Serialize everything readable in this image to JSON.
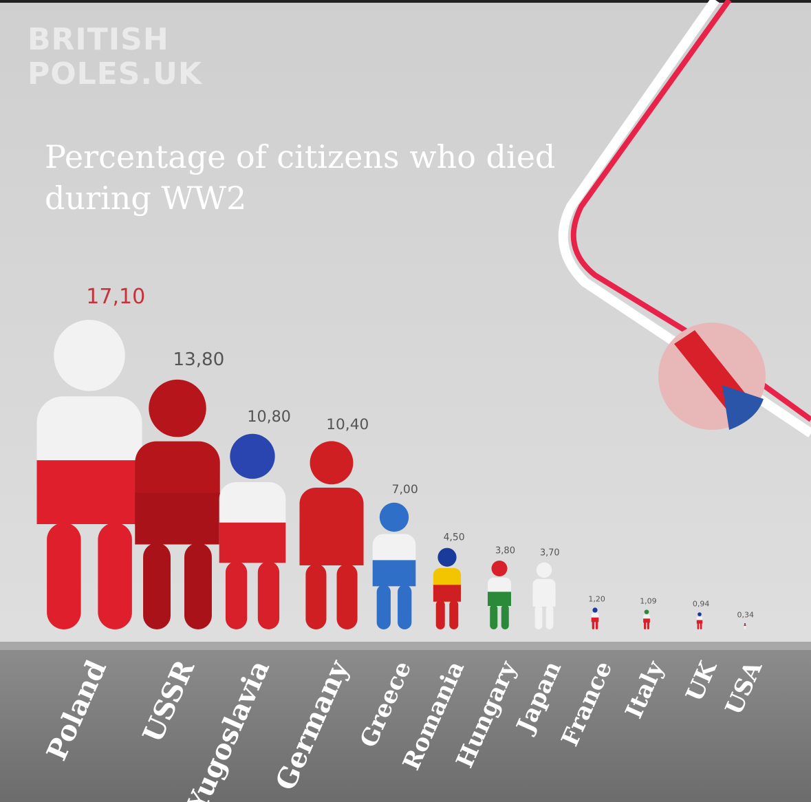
{
  "chart_data": {
    "type": "pictogram",
    "title": "Percentage of citizens who died during WW2",
    "watermark": [
      "BRITISH",
      "POLES.UK"
    ],
    "categories": [
      "Poland",
      "USSR",
      "Yugoslavia",
      "Germany",
      "Greece",
      "Romania",
      "Hungary",
      "Japan",
      "France",
      "Italy",
      "UK",
      "USA"
    ],
    "values": [
      17.1,
      13.8,
      10.8,
      10.4,
      7.0,
      4.5,
      3.8,
      3.7,
      1.2,
      1.09,
      0.94,
      0.34
    ],
    "value_labels": [
      "17,10",
      "13,80",
      "10,80",
      "10,40",
      "7,00",
      "4,50",
      "3,80",
      "3,70",
      "1,20",
      "1,09",
      "0,94",
      "0,34"
    ],
    "colors": [
      [
        "#f2f2f2",
        "#f2f2f2",
        "#e01f2d"
      ],
      [
        "#b5151b",
        "#b5151b",
        "#a81218"
      ],
      [
        "#2a45b0",
        "#f2f2f2",
        "#d8202a"
      ],
      [
        "#d01f22",
        "#d01f22",
        "#d01f22"
      ],
      [
        "#2f6fc8",
        "#f2f2f2",
        "#2f6fc8"
      ],
      [
        "#1a3a9c",
        "#f2c500",
        "#d01f22"
      ],
      [
        "#d8202a",
        "#f2f2f2",
        "#2a8a3a"
      ],
      [
        "#f2f2f2",
        "#f2f2f2",
        "#f2f2f2"
      ],
      [
        "#1a3a9c",
        "#f2f2f2",
        "#d8202a"
      ],
      [
        "#2a8a3a",
        "#f2f2f2",
        "#d8202a"
      ],
      [
        "#1a3a9c",
        "#f2f2f2",
        "#d8202a"
      ],
      [
        "#1a3a9c",
        "#d8202a",
        "#f2f2f2"
      ]
    ],
    "label_color": "#c8323a"
  }
}
